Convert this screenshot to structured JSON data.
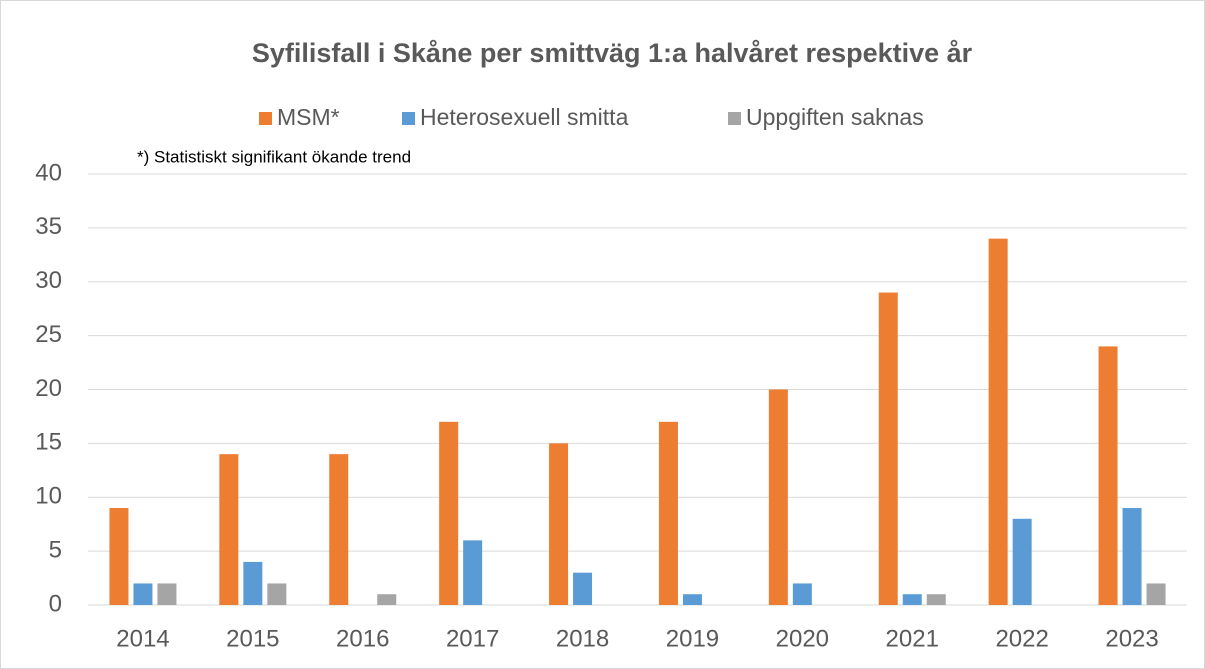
{
  "chart_data": {
    "type": "bar",
    "title": "Syfilisfall i Skåne per smittväg 1:a halvåret respektive år",
    "annotation": "*) Statistiskt signifikant ökande trend",
    "categories": [
      "2014",
      "2015",
      "2016",
      "2017",
      "2018",
      "2019",
      "2020",
      "2021",
      "2022",
      "2023"
    ],
    "series": [
      {
        "name": "MSM*",
        "color": "#ed7d31",
        "values": [
          9,
          14,
          14,
          17,
          15,
          17,
          20,
          29,
          34,
          24
        ]
      },
      {
        "name": "Heterosexuell smitta",
        "color": "#5b9bd5",
        "values": [
          2,
          4,
          0,
          6,
          3,
          1,
          2,
          1,
          8,
          9
        ]
      },
      {
        "name": "Uppgiften saknas",
        "color": "#a5a5a5",
        "values": [
          2,
          2,
          1,
          0,
          0,
          0,
          0,
          1,
          0,
          2
        ]
      }
    ],
    "ylim": [
      0,
      40
    ],
    "yticks": [
      0,
      5,
      10,
      15,
      20,
      25,
      30,
      35,
      40
    ],
    "grid": true,
    "legend": "top"
  }
}
